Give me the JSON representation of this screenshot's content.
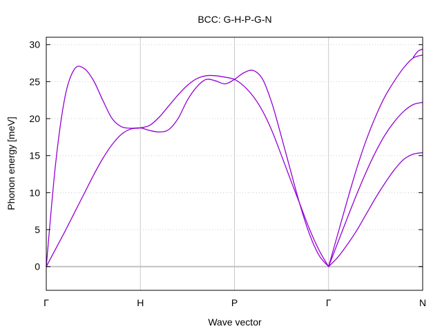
{
  "chart_data": {
    "type": "line",
    "title": "BCC: G-H-P-G-N",
    "xlabel": "Wave vector",
    "ylabel": "Phonon energy [meV]",
    "ylim": [
      -3.2,
      31
    ],
    "yticks": [
      0,
      5,
      10,
      15,
      20,
      25,
      30
    ],
    "xlim": [
      0,
      4
    ],
    "xticks": [
      {
        "x": 0,
        "label": "Γ"
      },
      {
        "x": 1,
        "label": "H"
      },
      {
        "x": 2,
        "label": "P"
      },
      {
        "x": 3,
        "label": "Γ"
      },
      {
        "x": 4,
        "label": "N"
      }
    ],
    "grid": true,
    "legend": "none",
    "line_color": "#9400d3",
    "zero_line_color": "#c0c0c0",
    "grid_color": "#c8c8c8",
    "series": [
      {
        "x": [
          0,
          0.1,
          0.2,
          0.3,
          0.4,
          0.5,
          0.6,
          0.7,
          0.8,
          0.9,
          1.0,
          1.1,
          1.2,
          1.3,
          1.4,
          1.5,
          1.6,
          1.7,
          1.8,
          1.9,
          2.0,
          2.1,
          2.2,
          2.3,
          2.4,
          2.5,
          2.6,
          2.7,
          2.8,
          2.9,
          3.0
        ],
        "y": [
          0,
          14.0,
          23.0,
          26.7,
          26.8,
          25.2,
          22.5,
          20.0,
          18.9,
          18.7,
          18.75,
          18.4,
          18.2,
          18.5,
          20.0,
          22.5,
          24.3,
          25.3,
          25.1,
          24.7,
          25.3,
          26.2,
          26.5,
          25.3,
          22.0,
          17.5,
          12.8,
          8.2,
          4.3,
          1.5,
          0
        ]
      },
      {
        "x": [
          0,
          0.1,
          0.2,
          0.3,
          0.4,
          0.5,
          0.6,
          0.7,
          0.8,
          0.9,
          1.0,
          1.1,
          1.2,
          1.3,
          1.4,
          1.5,
          1.6,
          1.7,
          1.8,
          1.9,
          2.0,
          2.1,
          2.2,
          2.3,
          2.4,
          2.5,
          2.6,
          2.7,
          2.8,
          2.9,
          3.0
        ],
        "y": [
          0,
          2.4,
          4.8,
          7.3,
          9.8,
          12.3,
          14.6,
          16.5,
          17.9,
          18.6,
          18.75,
          19.1,
          20.2,
          21.7,
          23.2,
          24.5,
          25.4,
          25.8,
          25.8,
          25.6,
          25.3,
          24.4,
          23.0,
          21.0,
          18.3,
          15.0,
          11.6,
          8.3,
          5.0,
          2.2,
          0
        ]
      },
      {
        "x": [
          3.0,
          3.1,
          3.2,
          3.3,
          3.4,
          3.5,
          3.6,
          3.7,
          3.8,
          3.9,
          4.0
        ],
        "y": [
          0,
          4.5,
          9.0,
          13.3,
          17.1,
          20.3,
          23.0,
          25.1,
          26.9,
          28.2,
          28.6
        ]
      },
      {
        "x": [
          3.0,
          3.1,
          3.2,
          3.3,
          3.4,
          3.5,
          3.6,
          3.7,
          3.8,
          3.9,
          4.0
        ],
        "y": [
          0,
          3.3,
          6.6,
          9.8,
          12.8,
          15.5,
          17.8,
          19.6,
          21.0,
          21.9,
          22.2
        ]
      },
      {
        "x": [
          3.0,
          3.1,
          3.2,
          3.3,
          3.4,
          3.5,
          3.6,
          3.7,
          3.8,
          3.9,
          4.0
        ],
        "y": [
          0,
          1.3,
          3.0,
          4.9,
          7.1,
          9.3,
          11.3,
          13.1,
          14.5,
          15.2,
          15.4
        ]
      },
      {
        "x": [
          3.9,
          3.95,
          4.0
        ],
        "y": [
          28.3,
          29.1,
          29.4
        ]
      }
    ]
  }
}
